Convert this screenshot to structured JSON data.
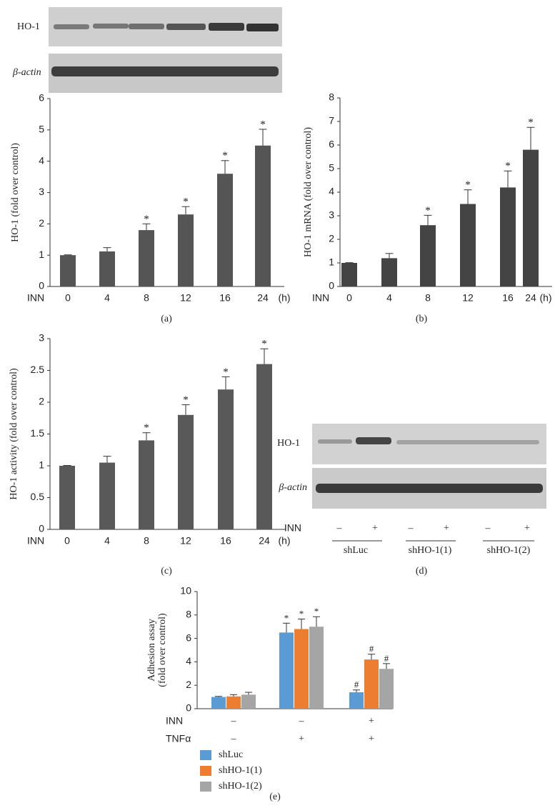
{
  "blot_top": {
    "labels": [
      "HO-1",
      "β-actin"
    ]
  },
  "chart_data": [
    {
      "type": "bar",
      "ylabel": "HO-1 (fold over control)",
      "row_label": "INN",
      "x_unit": "(h)",
      "caption": "(a)",
      "categories": [
        "0",
        "4",
        "8",
        "12",
        "16",
        "24"
      ],
      "values": [
        1,
        1.12,
        1.8,
        2.3,
        3.6,
        4.5
      ],
      "errors": [
        0.01,
        0.12,
        0.2,
        0.25,
        0.42,
        0.52
      ],
      "markers": [
        null,
        null,
        "*",
        "*",
        "*",
        "*"
      ],
      "color": "#555555",
      "ylim": [
        0,
        6
      ],
      "yticks": [
        0,
        1,
        2,
        3,
        4,
        5,
        6
      ]
    },
    {
      "type": "bar",
      "ylabel": "HO-1 mRNA (fold over control)",
      "row_label": "INN",
      "x_unit": "(h)",
      "caption": "(b)",
      "categories": [
        "0",
        "4",
        "8",
        "12",
        "16",
        "24"
      ],
      "values": [
        1,
        1.2,
        2.6,
        3.5,
        4.2,
        5.8
      ],
      "errors": [
        0.01,
        0.2,
        0.42,
        0.6,
        0.7,
        0.95
      ],
      "markers": [
        null,
        null,
        "*",
        "*",
        "*",
        "*"
      ],
      "color": "#444444",
      "ylim": [
        0,
        8
      ],
      "yticks": [
        0,
        1,
        2,
        3,
        4,
        5,
        6,
        7,
        8
      ]
    },
    {
      "type": "bar",
      "ylabel": "HO-1 activity (fold over control)",
      "row_label": "INN",
      "x_unit": "(h)",
      "caption": "(c)",
      "categories": [
        "0",
        "4",
        "8",
        "12",
        "16",
        "24"
      ],
      "values": [
        1,
        1.05,
        1.4,
        1.8,
        2.2,
        2.6
      ],
      "errors": [
        0.005,
        0.1,
        0.12,
        0.16,
        0.2,
        0.24
      ],
      "markers": [
        null,
        null,
        "*",
        "*",
        "*",
        "*"
      ],
      "color": "#595959",
      "ylim": [
        0,
        3
      ],
      "yticks": [
        0,
        0.5,
        1,
        1.5,
        2,
        2.5,
        3
      ]
    },
    {
      "type": "grouped_bar",
      "ylabel": [
        "Adhesion assay",
        "(fold over control)"
      ],
      "caption": "(e)",
      "rows": [
        {
          "label": "INN",
          "values": [
            "–",
            "–",
            "+"
          ]
        },
        {
          "label": "TNFα",
          "values": [
            "–",
            "+",
            "+"
          ]
        }
      ],
      "series": [
        {
          "name": "shLuc",
          "color": "#5b9bd5",
          "values": [
            1,
            6.5,
            1.4
          ],
          "errors": [
            0.05,
            0.8,
            0.2
          ],
          "markers": [
            null,
            "*",
            "#"
          ]
        },
        {
          "name": "shHO-1(1)",
          "color": "#ed7d31",
          "values": [
            1.05,
            6.8,
            4.2
          ],
          "errors": [
            0.15,
            0.85,
            0.45
          ],
          "markers": [
            null,
            "*",
            "#"
          ]
        },
        {
          "name": "shHO-1(2)",
          "color": "#a5a5a5",
          "values": [
            1.2,
            7,
            3.4
          ],
          "errors": [
            0.2,
            0.85,
            0.45
          ],
          "markers": [
            null,
            "*",
            "#"
          ]
        }
      ],
      "ylim": [
        0,
        10
      ],
      "yticks": [
        0,
        2,
        4,
        6,
        8,
        10
      ]
    }
  ],
  "blot_d": {
    "labels": [
      "HO-1",
      "β-actin"
    ],
    "row_label": "INN",
    "signs": [
      "–",
      "+",
      "–",
      "+",
      "–",
      "+"
    ],
    "groups": [
      "shLuc",
      "shHO-1(1)",
      "shHO-1(2)"
    ],
    "caption": "(d)"
  }
}
